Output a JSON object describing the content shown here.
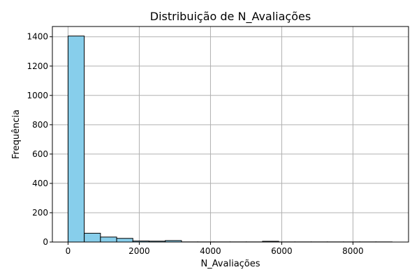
{
  "chart_data": {
    "type": "bar",
    "title": "Distribuição de N_Avaliações",
    "xlabel": "N_Avaliações",
    "ylabel": "Frequência",
    "xlim": [
      -440,
      9560
    ],
    "ylim": [
      0,
      1470
    ],
    "grid": true,
    "bar_color": "#87CEEB",
    "edge_color": "#000000",
    "x_ticks": [
      0,
      2000,
      4000,
      6000,
      8000
    ],
    "y_ticks": [
      0,
      200,
      400,
      600,
      800,
      1000,
      1200,
      1400
    ],
    "bins": [
      {
        "x0": 0,
        "x1": 455,
        "count": 1405
      },
      {
        "x0": 455,
        "x1": 910,
        "count": 60
      },
      {
        "x0": 910,
        "x1": 1365,
        "count": 34
      },
      {
        "x0": 1365,
        "x1": 1820,
        "count": 25
      },
      {
        "x0": 1820,
        "x1": 2275,
        "count": 7
      },
      {
        "x0": 2275,
        "x1": 2730,
        "count": 6
      },
      {
        "x0": 2730,
        "x1": 3185,
        "count": 10
      },
      {
        "x0": 3185,
        "x1": 3640,
        "count": 1
      },
      {
        "x0": 3640,
        "x1": 4095,
        "count": 1
      },
      {
        "x0": 4095,
        "x1": 4550,
        "count": 1
      },
      {
        "x0": 4550,
        "x1": 5005,
        "count": 1
      },
      {
        "x0": 5005,
        "x1": 5460,
        "count": 1
      },
      {
        "x0": 5460,
        "x1": 5915,
        "count": 5
      },
      {
        "x0": 5915,
        "x1": 6370,
        "count": 1
      },
      {
        "x0": 6370,
        "x1": 6825,
        "count": 1
      },
      {
        "x0": 6825,
        "x1": 7280,
        "count": 1
      },
      {
        "x0": 7280,
        "x1": 7735,
        "count": 1
      },
      {
        "x0": 7735,
        "x1": 8190,
        "count": 1
      },
      {
        "x0": 8190,
        "x1": 8645,
        "count": 1
      },
      {
        "x0": 8645,
        "x1": 9100,
        "count": 1
      }
    ]
  }
}
